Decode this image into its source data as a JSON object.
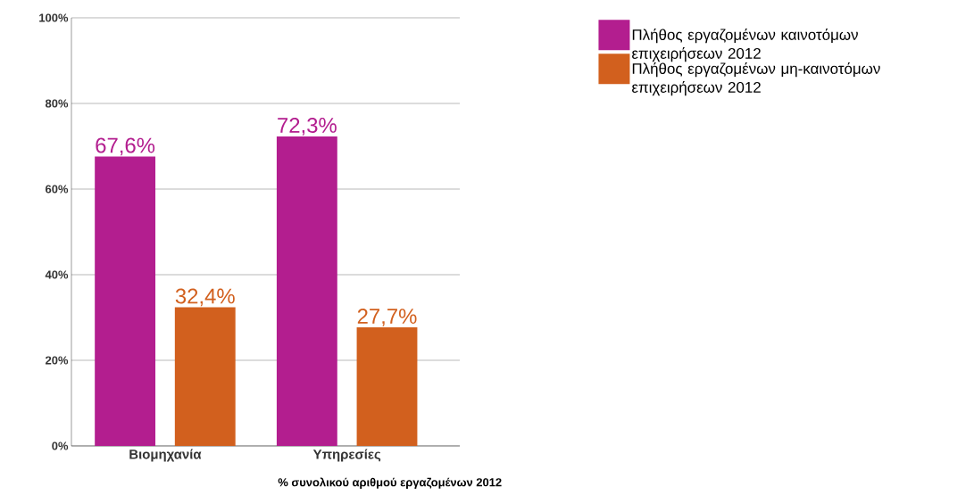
{
  "chart_data": {
    "type": "bar",
    "categories": [
      "Βιομηχανία",
      "Υπηρεσίες"
    ],
    "series": [
      {
        "name": "Πλήθος εργαζομένων καινοτόμων επιχειρήσεων 2012",
        "color": "#b31e8f",
        "values": [
          67.6,
          72.3
        ],
        "value_labels": [
          "67,6%",
          "72,3%"
        ]
      },
      {
        "name": "Πλήθος εργαζομένων μη-καινοτόμων επιχειρήσεων 2012",
        "color": "#d2601e",
        "values": [
          32.4,
          27.7
        ],
        "value_labels": [
          "32,4%",
          "27,7%"
        ]
      }
    ],
    "xlabel": "% συνολικού αριθμού εργαζομένων 2012",
    "ylim": [
      0,
      100
    ],
    "yticks": [
      {
        "value": 0,
        "label": "0%"
      },
      {
        "value": 20,
        "label": "20%"
      },
      {
        "value": 40,
        "label": "40%"
      },
      {
        "value": 60,
        "label": "60%"
      },
      {
        "value": 80,
        "label": "80%"
      },
      {
        "value": 100,
        "label": "100%"
      }
    ],
    "grid": "y",
    "legend": "top right"
  }
}
